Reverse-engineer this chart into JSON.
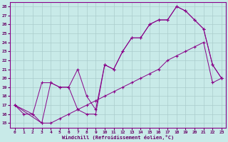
{
  "xlabel": "Windchill (Refroidissement éolien,°C)",
  "background_color": "#c8eae8",
  "line_color": "#880088",
  "grid_color": "#aacccc",
  "xlim": [
    -0.5,
    23.5
  ],
  "ylim": [
    14.5,
    28.5
  ],
  "xticks": [
    0,
    1,
    2,
    3,
    4,
    5,
    6,
    7,
    8,
    9,
    10,
    11,
    12,
    13,
    14,
    15,
    16,
    17,
    18,
    19,
    20,
    21,
    22,
    23
  ],
  "yticks": [
    15,
    16,
    17,
    18,
    19,
    20,
    21,
    22,
    23,
    24,
    25,
    26,
    27,
    28
  ],
  "series": [
    {
      "x": [
        0,
        1,
        2,
        3,
        4,
        5,
        6,
        7,
        8,
        9,
        10,
        11,
        12,
        13,
        14,
        15,
        16,
        17,
        18,
        19,
        20,
        21,
        22,
        23
      ],
      "y": [
        17,
        16,
        16,
        19.5,
        19.5,
        19.0,
        19.0,
        16.5,
        16.0,
        16.0,
        21.5,
        21.0,
        23.0,
        24.5,
        24.5,
        26.0,
        26.5,
        26.5,
        28.0,
        27.5,
        26.5,
        25.5,
        21.5,
        20.0
      ]
    },
    {
      "x": [
        0,
        3,
        4,
        5,
        6,
        7,
        8,
        9,
        10,
        11,
        12,
        13,
        14,
        15,
        16,
        17,
        18,
        19,
        20,
        21,
        22,
        23
      ],
      "y": [
        17,
        15,
        15,
        15.5,
        16.0,
        16.5,
        17.0,
        17.5,
        18.0,
        18.5,
        19.0,
        19.5,
        20.0,
        20.5,
        21.0,
        22.0,
        22.5,
        23.0,
        23.5,
        24.0,
        19.5,
        20.0
      ]
    },
    {
      "x": [
        0,
        2,
        3,
        4,
        5,
        6,
        7,
        8,
        9,
        10,
        11,
        12,
        13,
        14,
        15,
        16,
        17,
        18,
        19,
        20,
        21,
        22,
        23
      ],
      "y": [
        17,
        16,
        15,
        19.5,
        19.0,
        19.0,
        21.0,
        18.0,
        16.5,
        21.5,
        21.0,
        23.0,
        24.5,
        24.5,
        26.0,
        26.5,
        26.5,
        28.0,
        27.5,
        26.5,
        25.5,
        21.5,
        20.0
      ]
    }
  ]
}
